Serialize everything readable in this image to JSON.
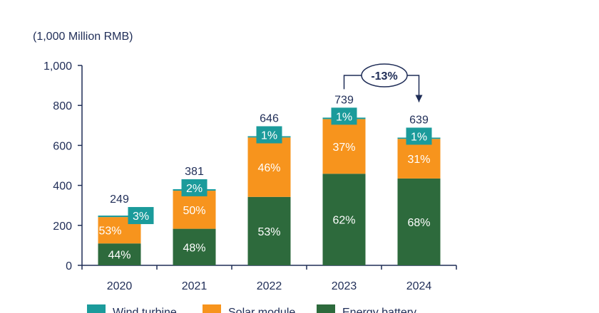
{
  "chart_data": {
    "type": "bar",
    "stacked": true,
    "unit_label": "(1,000 Million RMB)",
    "categories": [
      "2020",
      "2021",
      "2022",
      "2023",
      "2024"
    ],
    "totals": [
      249,
      381,
      646,
      739,
      639
    ],
    "series": [
      {
        "name": "Energy battery",
        "color": "#2d6a3c",
        "shares": [
          "44%",
          "48%",
          "53%",
          "62%",
          "68%"
        ],
        "share_values": [
          44,
          48,
          53,
          62,
          68
        ]
      },
      {
        "name": "Solar module",
        "color": "#f7941d",
        "shares": [
          "53%",
          "50%",
          "46%",
          "37%",
          "31%"
        ],
        "share_values": [
          53,
          50,
          46,
          37,
          31
        ]
      },
      {
        "name": "Wind turbine",
        "color": "#1b9b9b",
        "shares": [
          "3%",
          "2%",
          "1%",
          "1%",
          "1%"
        ],
        "share_values": [
          3,
          2,
          1,
          1,
          1
        ]
      }
    ],
    "ylim": [
      0,
      1000
    ],
    "yticks": [
      "0",
      "200",
      "400",
      "600",
      "800",
      "1,000"
    ],
    "ytick_values": [
      0,
      200,
      400,
      600,
      800,
      1000
    ],
    "annotation": {
      "label": "-13%",
      "from": "2023",
      "to": "2024"
    },
    "legend": {
      "placement": "bottom",
      "order": [
        "Wind turbine",
        "Solar module",
        "Energy battery"
      ]
    },
    "grid": false
  }
}
